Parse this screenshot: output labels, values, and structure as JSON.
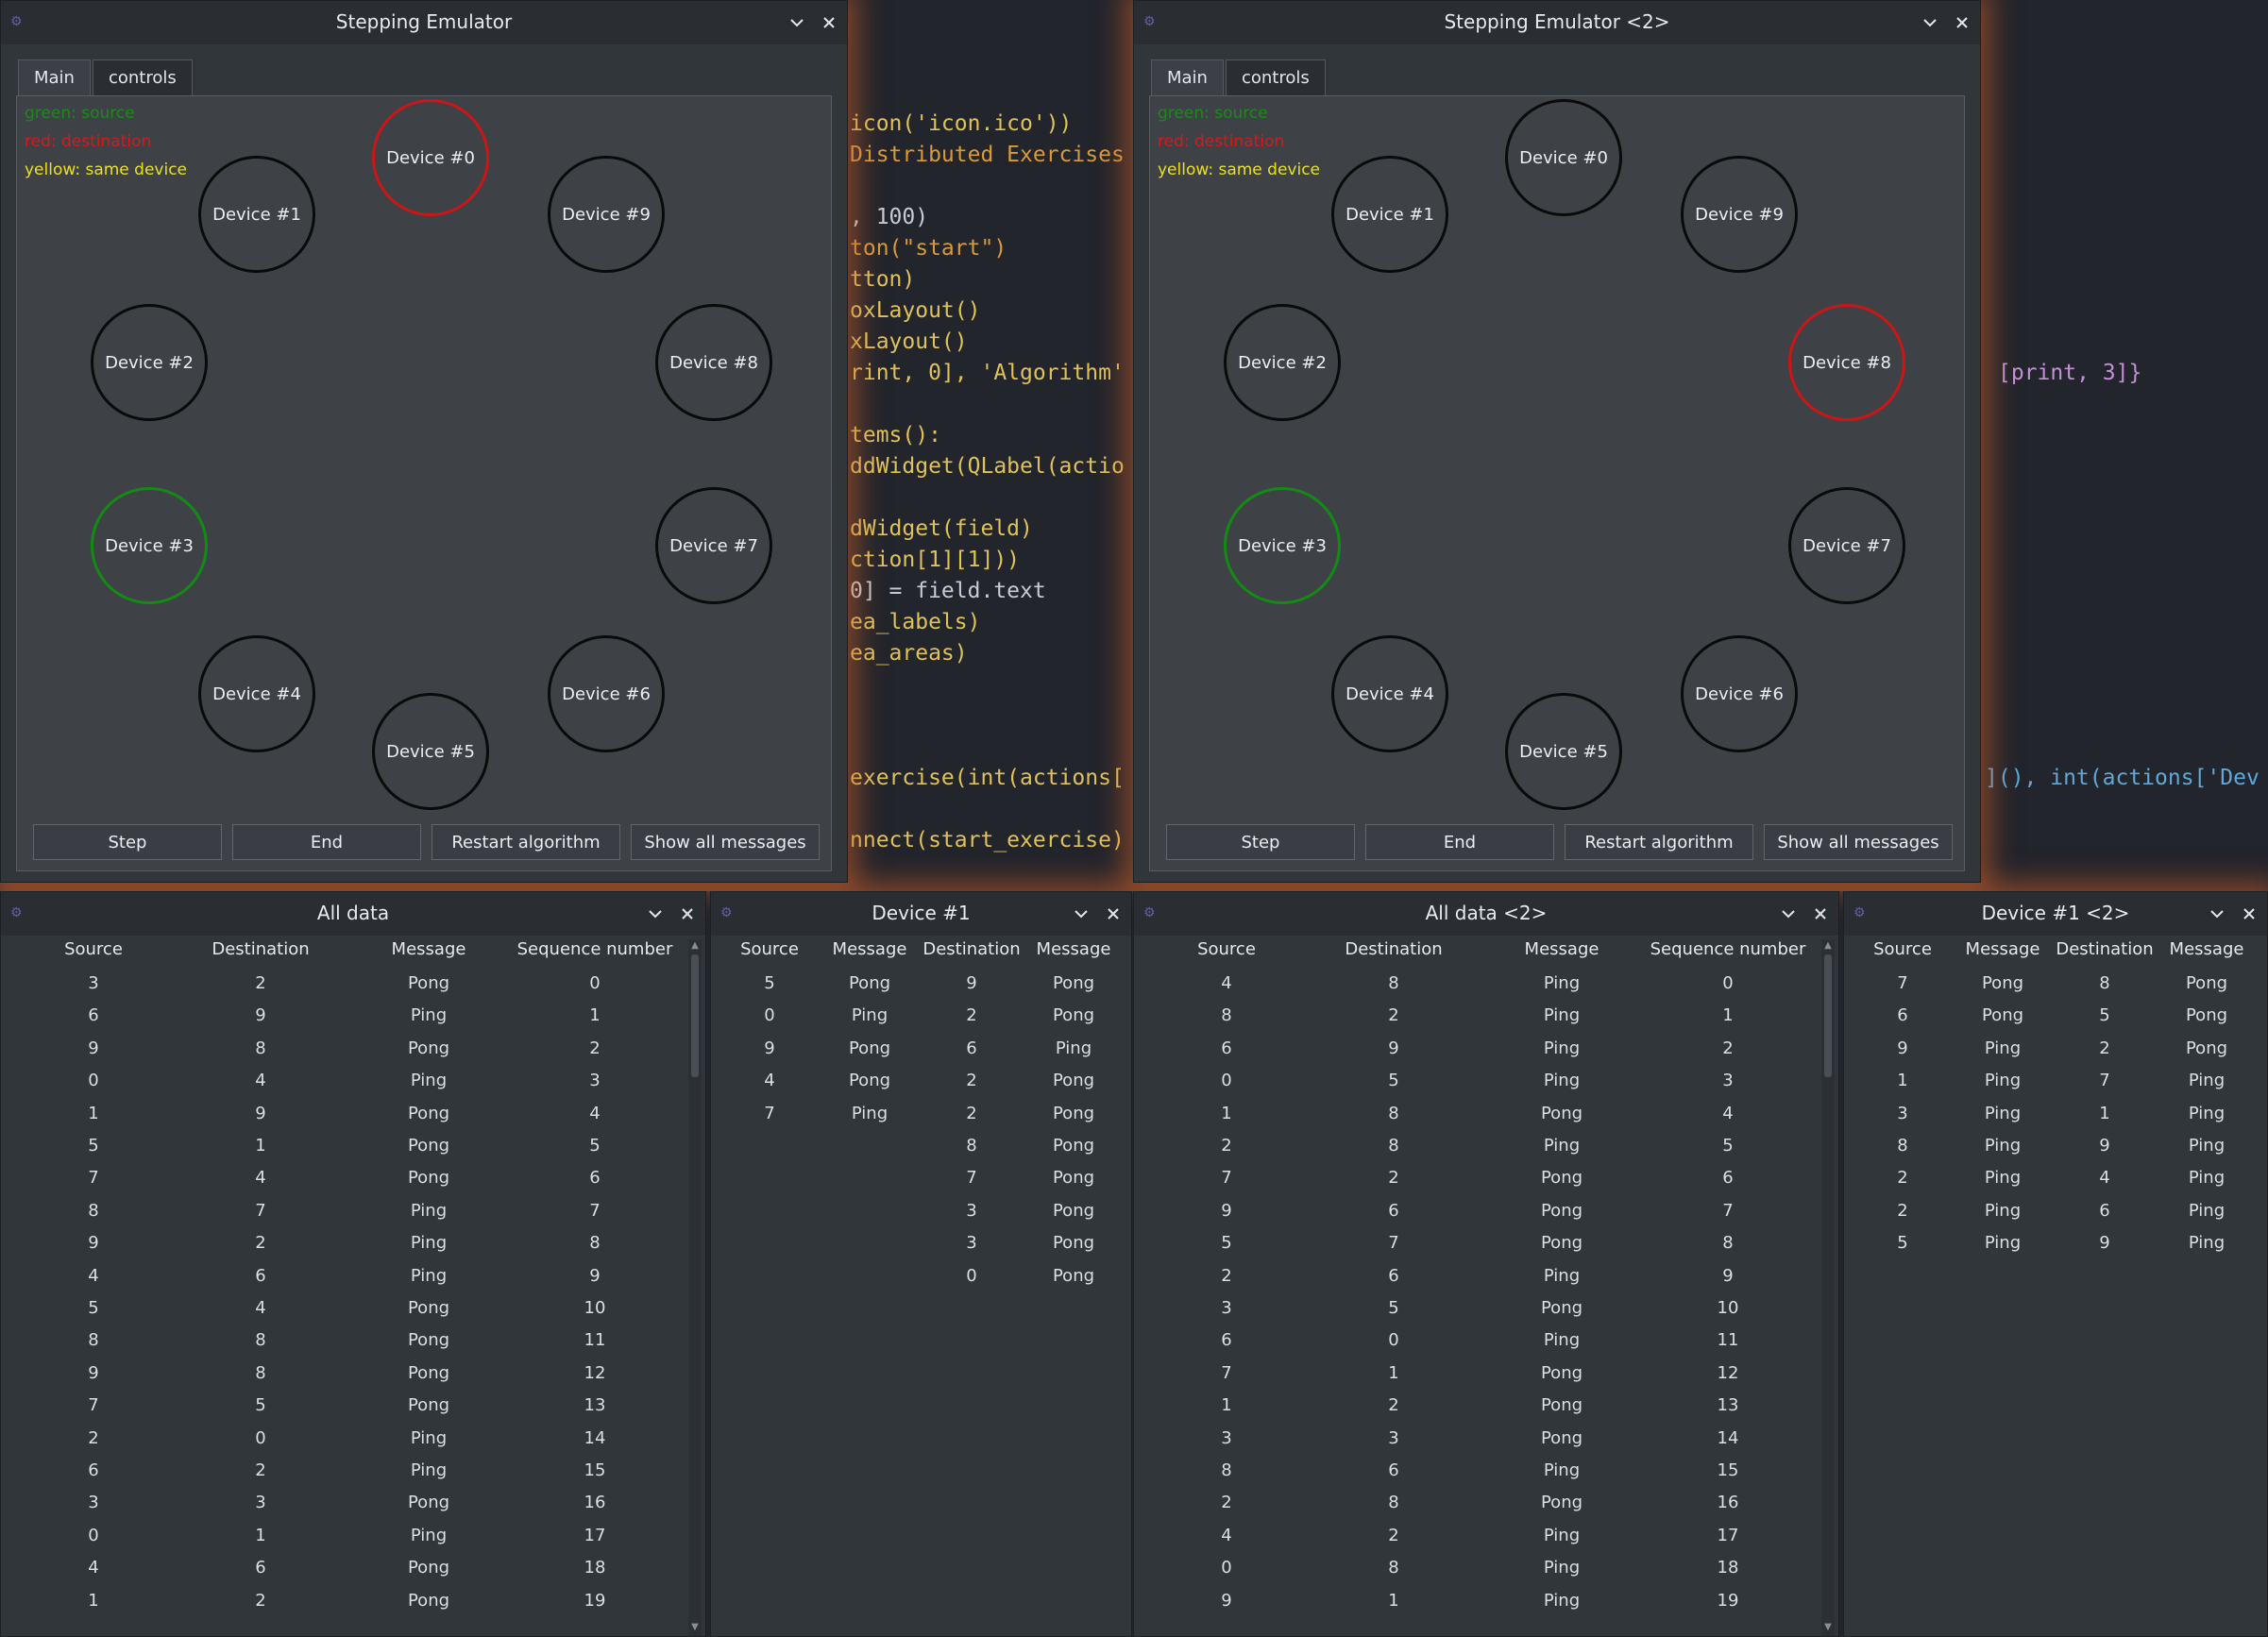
{
  "editor": {
    "lines": [
      {
        "text": "icon('icon.ico'))",
        "color": "#e0c25a"
      },
      {
        "text": "Distributed Exercises",
        "color": "#d99a3a"
      },
      {
        "text": ", 100)",
        "color": "#c7cbd3"
      },
      {
        "text": "ton(\"start\")",
        "color": "#d99a3a"
      },
      {
        "text": "tton)",
        "color": "#e0c25a"
      },
      {
        "text": "oxLayout()",
        "color": "#e0c25a"
      },
      {
        "text": "xLayout()",
        "color": "#e0c25a"
      },
      {
        "text": "rint, 0], 'Algorithm'",
        "color": "#e0c25a"
      },
      {
        "text": "tems():",
        "color": "#e0c25a"
      },
      {
        "text": "ddWidget(QLabel(actio",
        "color": "#e0c25a"
      },
      {
        "text": "dWidget(field)",
        "color": "#e0c25a"
      },
      {
        "text": "ction[1][1]))",
        "color": "#e0c25a"
      },
      {
        "text": "0] = field.text",
        "color": "#c7cbd3"
      },
      {
        "text": "ea_labels)",
        "color": "#e0c25a"
      },
      {
        "text": "ea_areas)",
        "color": "#e0c25a"
      },
      {
        "text": "exercise(int(actions[",
        "color": "#e0c25a"
      },
      {
        "text": "nnect(start_exercise)",
        "color": "#e0c25a"
      },
      {
        "text": "[print, 3]}",
        "color": "#c58fd8"
      },
      {
        "text": "](), int(actions['Dev",
        "color": "#5fa8d8"
      }
    ]
  },
  "emulators": [
    {
      "title": "Stepping Emulator",
      "tabs": [
        "Main",
        "controls"
      ],
      "legend": [
        "green: source",
        "red: destination",
        "yellow: same device"
      ],
      "devices": [
        "Device #0",
        "Device #1",
        "Device #2",
        "Device #3",
        "Device #4",
        "Device #5",
        "Device #6",
        "Device #7",
        "Device #8",
        "Device #9"
      ],
      "source_device": 3,
      "destination_device": 0,
      "buttons": [
        "Step",
        "End",
        "Restart algorithm",
        "Show all messages"
      ]
    },
    {
      "title": "Stepping Emulator <2>",
      "tabs": [
        "Main",
        "controls"
      ],
      "legend": [
        "green: source",
        "red: destination",
        "yellow: same device"
      ],
      "devices": [
        "Device #0",
        "Device #1",
        "Device #2",
        "Device #3",
        "Device #4",
        "Device #5",
        "Device #6",
        "Device #7",
        "Device #8",
        "Device #9"
      ],
      "source_device": 3,
      "destination_device": 8,
      "buttons": [
        "Step",
        "End",
        "Restart algorithm",
        "Show all messages"
      ]
    }
  ],
  "all_data": [
    {
      "title": "All data",
      "columns": [
        "Source",
        "Destination",
        "Message",
        "Sequence number"
      ],
      "rows": [
        [
          "3",
          "2",
          "Pong",
          "0"
        ],
        [
          "6",
          "9",
          "Ping",
          "1"
        ],
        [
          "9",
          "8",
          "Pong",
          "2"
        ],
        [
          "0",
          "4",
          "Ping",
          "3"
        ],
        [
          "1",
          "9",
          "Pong",
          "4"
        ],
        [
          "5",
          "1",
          "Pong",
          "5"
        ],
        [
          "7",
          "4",
          "Pong",
          "6"
        ],
        [
          "8",
          "7",
          "Ping",
          "7"
        ],
        [
          "9",
          "2",
          "Ping",
          "8"
        ],
        [
          "4",
          "6",
          "Ping",
          "9"
        ],
        [
          "5",
          "4",
          "Pong",
          "10"
        ],
        [
          "8",
          "8",
          "Pong",
          "11"
        ],
        [
          "9",
          "8",
          "Pong",
          "12"
        ],
        [
          "7",
          "5",
          "Pong",
          "13"
        ],
        [
          "2",
          "0",
          "Ping",
          "14"
        ],
        [
          "6",
          "2",
          "Ping",
          "15"
        ],
        [
          "3",
          "3",
          "Pong",
          "16"
        ],
        [
          "0",
          "1",
          "Ping",
          "17"
        ],
        [
          "4",
          "6",
          "Pong",
          "18"
        ],
        [
          "1",
          "2",
          "Pong",
          "19"
        ]
      ]
    },
    {
      "title": "All data <2>",
      "columns": [
        "Source",
        "Destination",
        "Message",
        "Sequence number"
      ],
      "rows": [
        [
          "4",
          "8",
          "Ping",
          "0"
        ],
        [
          "8",
          "2",
          "Ping",
          "1"
        ],
        [
          "6",
          "9",
          "Ping",
          "2"
        ],
        [
          "0",
          "5",
          "Ping",
          "3"
        ],
        [
          "1",
          "8",
          "Pong",
          "4"
        ],
        [
          "2",
          "8",
          "Ping",
          "5"
        ],
        [
          "7",
          "2",
          "Pong",
          "6"
        ],
        [
          "9",
          "6",
          "Pong",
          "7"
        ],
        [
          "5",
          "7",
          "Pong",
          "8"
        ],
        [
          "2",
          "6",
          "Ping",
          "9"
        ],
        [
          "3",
          "5",
          "Pong",
          "10"
        ],
        [
          "6",
          "0",
          "Ping",
          "11"
        ],
        [
          "7",
          "1",
          "Pong",
          "12"
        ],
        [
          "1",
          "2",
          "Pong",
          "13"
        ],
        [
          "3",
          "3",
          "Pong",
          "14"
        ],
        [
          "8",
          "6",
          "Ping",
          "15"
        ],
        [
          "2",
          "8",
          "Pong",
          "16"
        ],
        [
          "4",
          "2",
          "Ping",
          "17"
        ],
        [
          "0",
          "8",
          "Ping",
          "18"
        ],
        [
          "9",
          "1",
          "Ping",
          "19"
        ]
      ]
    }
  ],
  "device_views": [
    {
      "title": "Device #1",
      "columns": [
        "Source",
        "Message",
        "Destination",
        "Message"
      ],
      "left_rows": [
        [
          "5",
          "Pong"
        ],
        [
          "0",
          "Ping"
        ],
        [
          "9",
          "Pong"
        ],
        [
          "4",
          "Pong"
        ],
        [
          "7",
          "Ping"
        ]
      ],
      "right_rows": [
        [
          "9",
          "Pong"
        ],
        [
          "2",
          "Pong"
        ],
        [
          "6",
          "Ping"
        ],
        [
          "2",
          "Pong"
        ],
        [
          "2",
          "Pong"
        ],
        [
          "8",
          "Pong"
        ],
        [
          "7",
          "Pong"
        ],
        [
          "3",
          "Pong"
        ],
        [
          "3",
          "Pong"
        ],
        [
          "0",
          "Pong"
        ]
      ]
    },
    {
      "title": "Device #1 <2>",
      "columns": [
        "Source",
        "Message",
        "Destination",
        "Message"
      ],
      "left_rows": [
        [
          "7",
          "Pong"
        ],
        [
          "6",
          "Pong"
        ],
        [
          "9",
          "Ping"
        ],
        [
          "1",
          "Ping"
        ],
        [
          "3",
          "Ping"
        ],
        [
          "8",
          "Ping"
        ],
        [
          "2",
          "Ping"
        ],
        [
          "2",
          "Ping"
        ],
        [
          "5",
          "Ping"
        ]
      ],
      "right_rows": [
        [
          "8",
          "Pong"
        ],
        [
          "5",
          "Pong"
        ],
        [
          "2",
          "Pong"
        ],
        [
          "7",
          "Ping"
        ],
        [
          "1",
          "Ping"
        ],
        [
          "9",
          "Ping"
        ],
        [
          "4",
          "Ping"
        ],
        [
          "6",
          "Ping"
        ],
        [
          "9",
          "Ping"
        ]
      ]
    }
  ],
  "colors": {
    "source": "#138a13",
    "destination": "#cc1515",
    "same_device": "#e8e020",
    "legend_source": "#1b8a1b",
    "legend_destination": "#d41a1a"
  },
  "icons": [
    "app-icon",
    "minimize-chevron-icon",
    "close-icon"
  ]
}
